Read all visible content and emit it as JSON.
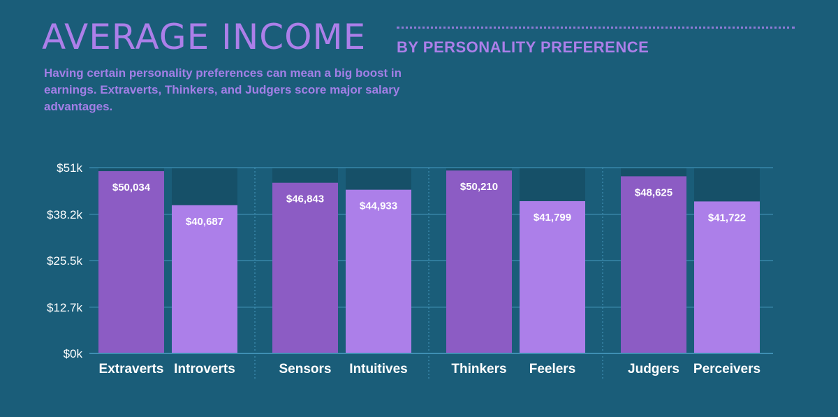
{
  "header": {
    "title": "AVERAGE INCOME",
    "subtitle": "BY PERSONALITY PREFERENCE",
    "description": "Having certain personality preferences can mean a big boost in earnings. Extraverts, Thinkers, and Judgers score major salary advantages."
  },
  "chart_data": {
    "type": "bar",
    "categories": [
      "Extraverts",
      "Introverts",
      "Sensors",
      "Intuitives",
      "Thinkers",
      "Feelers",
      "Judgers",
      "Perceivers"
    ],
    "values": [
      50034,
      40687,
      46843,
      44933,
      50210,
      41799,
      48625,
      41722
    ],
    "value_labels": [
      "$50,034",
      "$40,687",
      "$46,843",
      "$44,933",
      "$50,210",
      "$41,799",
      "$48,625",
      "$41,722"
    ],
    "groups": [
      [
        "Extraverts",
        "Introverts"
      ],
      [
        "Sensors",
        "Intuitives"
      ],
      [
        "Thinkers",
        "Feelers"
      ],
      [
        "Judgers",
        "Perceivers"
      ]
    ],
    "ylim": [
      0,
      51000
    ],
    "yticks": [
      0,
      12700,
      25500,
      38200,
      51000
    ],
    "ytick_labels": [
      "$0k",
      "$12.7k",
      "$25.5k",
      "$38.2k",
      "$51k"
    ],
    "grid": true,
    "colors": {
      "background": "#1a5d79",
      "first_in_group": "#8c5cc4",
      "second_in_group": "#ac7fe9",
      "track": "#165068",
      "grid": "#3f8fb3",
      "title": "#ac7fe9"
    }
  }
}
